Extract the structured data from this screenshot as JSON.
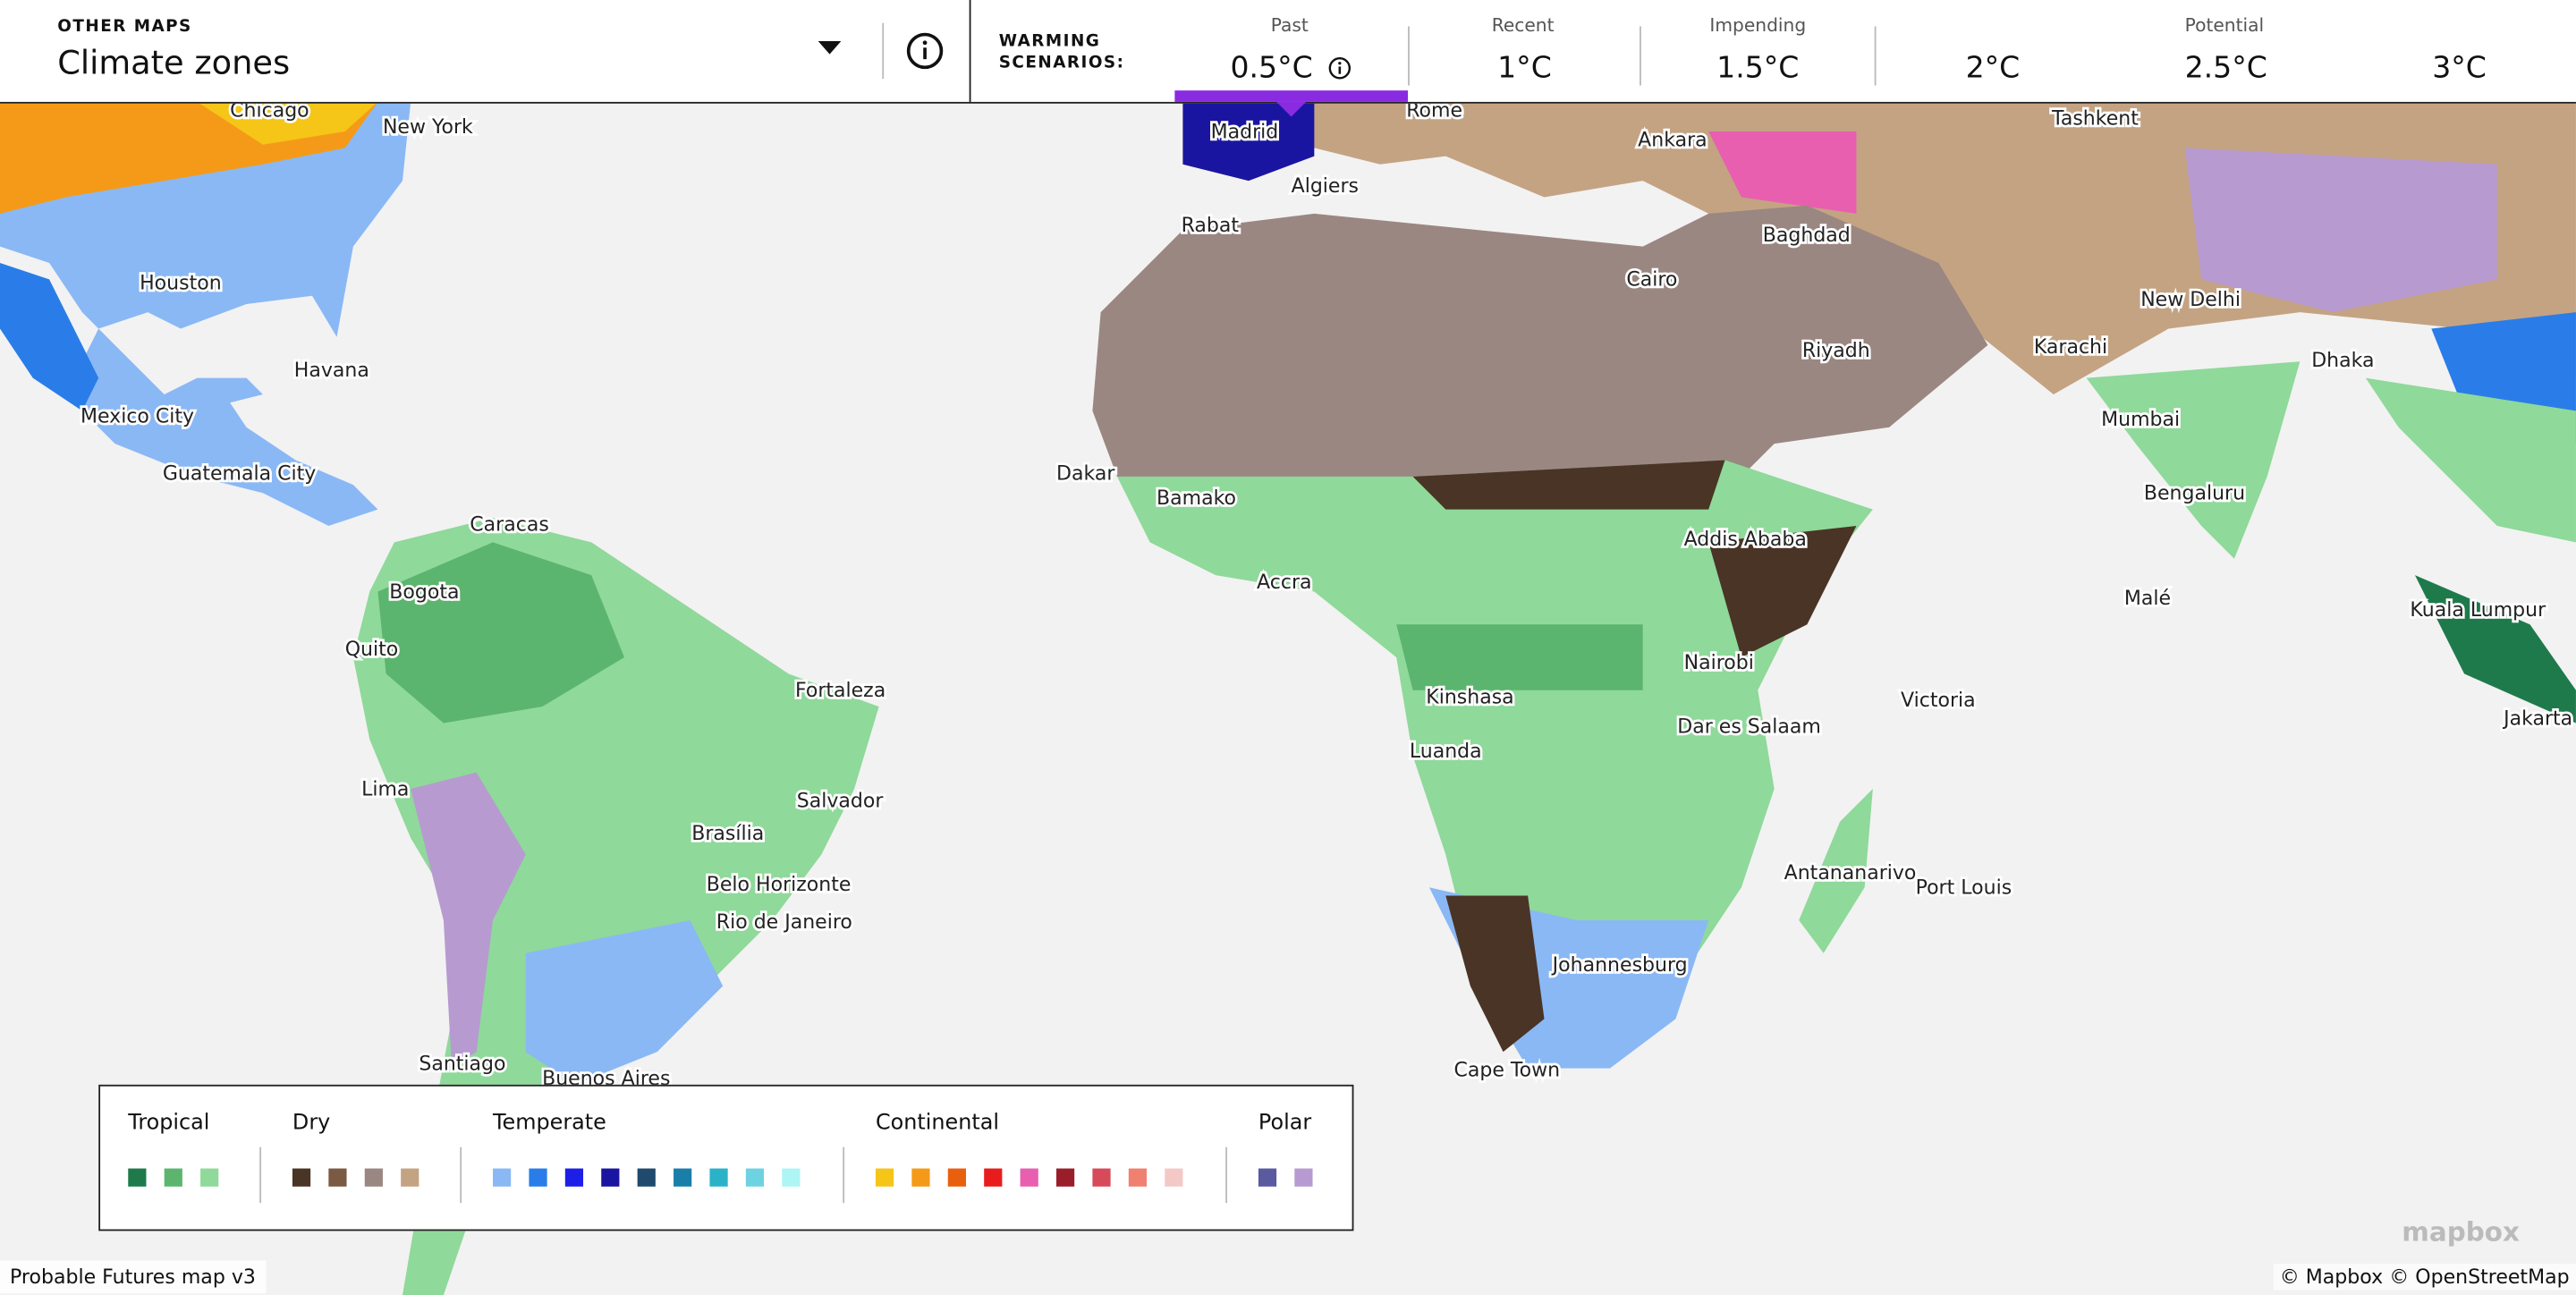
{
  "header": {
    "other_maps": "OTHER MAPS",
    "map_name": "Climate zones",
    "warming_label": "WARMING SCENARIOS:",
    "scenarios": [
      {
        "label": "Past",
        "values": [
          "0.5°C"
        ]
      },
      {
        "label": "Recent",
        "values": [
          "1°C"
        ]
      },
      {
        "label": "Impending",
        "values": [
          "1.5°C"
        ]
      },
      {
        "label": "Potential",
        "values": [
          "2°C",
          "2.5°C",
          "3°C"
        ]
      }
    ]
  },
  "cities": [
    "Chicago",
    "New York",
    "Houston",
    "Havana",
    "Mexico City",
    "Guatemala City",
    "Caracas",
    "Bogota",
    "Quito",
    "Lima",
    "Fortaleza",
    "Salvador",
    "Brasília",
    "Belo Horizonte",
    "Rio de Janeiro",
    "Santiago",
    "Buenos Aires",
    "Madrid",
    "Rome",
    "Algiers",
    "Rabat",
    "Ankara",
    "Tashkent",
    "Baghdad",
    "Cairo",
    "Riyadh",
    "Karachi",
    "New Delhi",
    "Dhaka",
    "Mumbai",
    "Bengaluru",
    "Malé",
    "Kuala Lumpur",
    "Jakarta",
    "Dakar",
    "Bamako",
    "Accra",
    "Addis Ababa",
    "Nairobi",
    "Kinshasa",
    "Dar es Salaam",
    "Victoria",
    "Luanda",
    "Antananarivo",
    "Port Louis",
    "Johannesburg",
    "Cape Town"
  ],
  "legend": {
    "groups": [
      {
        "label": "Tropical",
        "colors": [
          "#1e7a4a",
          "#5cb56e",
          "#8fd99a"
        ]
      },
      {
        "label": "Dry",
        "colors": [
          "#4a3426",
          "#7b5a44",
          "#9b8781",
          "#c4a383"
        ]
      },
      {
        "label": "Temperate",
        "colors": [
          "#8ab8f5",
          "#2a7de8",
          "#1d1ee8",
          "#1a15a0",
          "#1f4a6e",
          "#1a7fa8",
          "#2ab3c8",
          "#6ed3e0",
          "#aef5f5"
        ]
      },
      {
        "label": "Continental",
        "colors": [
          "#f5c518",
          "#f59a18",
          "#e8600e",
          "#e81c1c",
          "#e85fb0",
          "#9a1e2a",
          "#d64a5a",
          "#f08070",
          "#f5c8c8"
        ]
      },
      {
        "label": "Polar",
        "colors": [
          "#5a5aa0",
          "#b79ad0"
        ]
      }
    ]
  },
  "footer": {
    "version": "Probable Futures map v3",
    "logo": "mapbox",
    "attribution": [
      "© Mapbox",
      "© OpenStreetMap"
    ]
  }
}
